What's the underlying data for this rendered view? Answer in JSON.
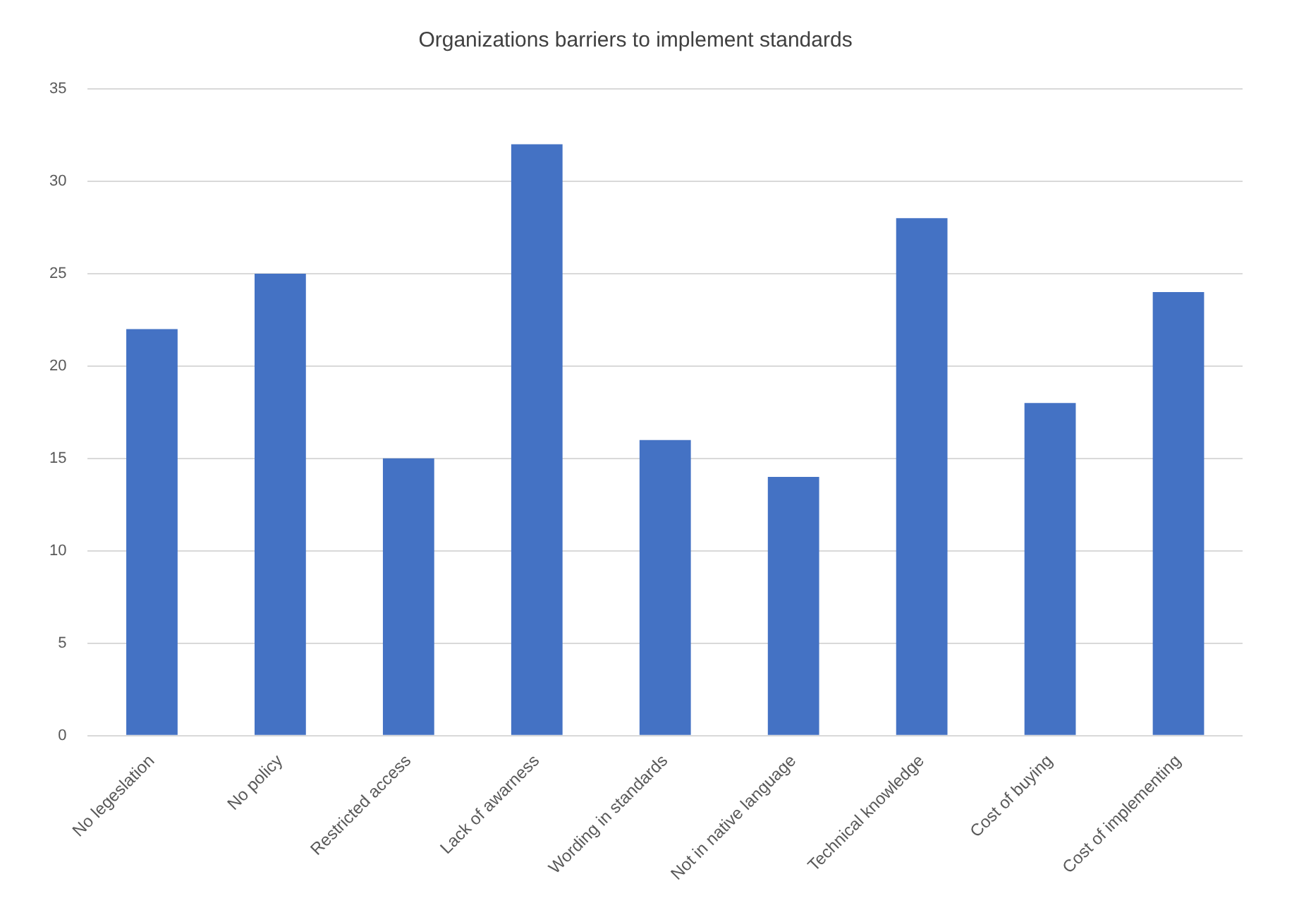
{
  "chart_data": {
    "type": "bar",
    "title": "Organizations barriers to implement standards",
    "categories": [
      "No legeslation",
      "No policy",
      "Restricted access",
      "Lack of awarness",
      "Wording in standards",
      "Not in native language",
      "Technical knowledge",
      "Cost of buying",
      "Cost of implementing"
    ],
    "values": [
      22,
      25,
      15,
      32,
      16,
      14,
      28,
      18,
      24
    ],
    "color": "#4472c4",
    "ylim": [
      0,
      35
    ],
    "yticks": [
      0,
      5,
      10,
      15,
      20,
      25,
      30,
      35
    ],
    "grid": "y"
  }
}
